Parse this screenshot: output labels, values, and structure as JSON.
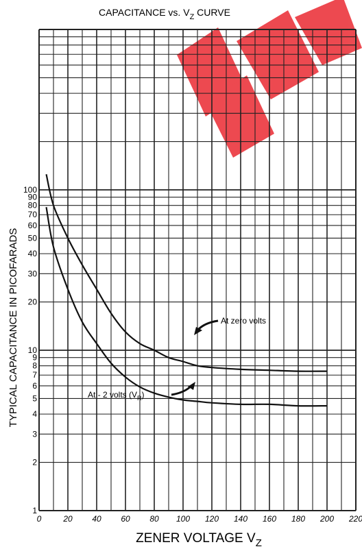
{
  "chart_data": {
    "type": "line",
    "title": "CAPACITANCE vs. V",
    "title_sub": "Z",
    "title_tail": " CURVE",
    "xlabel": "ZENER VOLTAGE V",
    "xlabel_sub": "Z",
    "ylabel": "TYPICAL CAPACITANCE IN PICOFARADS",
    "xlim": [
      0,
      220
    ],
    "ylim": [
      1,
      1000
    ],
    "y_scale": "log",
    "grid": true,
    "x_ticks": [
      "0",
      "20",
      "40",
      "60",
      "80",
      "100",
      "120",
      "140",
      "160",
      "180",
      "200",
      "220"
    ],
    "y_tick_values": [
      1,
      2,
      3,
      4,
      5,
      6,
      7,
      8,
      9,
      10,
      20,
      30,
      40,
      50,
      60,
      70,
      80,
      90,
      100
    ],
    "y_tick_labels": [
      "1",
      "2",
      "3",
      "4",
      "5",
      "6",
      "7",
      "8",
      "9",
      "10",
      "20",
      "30",
      "40",
      "50",
      "60",
      "70",
      "80",
      "90",
      "100"
    ],
    "series": [
      {
        "name": "At zero volts",
        "x": [
          5,
          10,
          20,
          30,
          40,
          50,
          60,
          70,
          80,
          90,
          100,
          110,
          120,
          140,
          160,
          180,
          200
        ],
        "y": [
          125,
          80,
          50,
          34,
          24,
          17,
          13,
          11,
          10,
          9,
          8.5,
          8,
          7.8,
          7.6,
          7.5,
          7.4,
          7.4
        ]
      },
      {
        "name": "At - 2 volts (V",
        "name_sub": "R",
        "name_tail": ")",
        "x": [
          5,
          10,
          20,
          30,
          40,
          50,
          60,
          70,
          80,
          90,
          100,
          110,
          120,
          140,
          160,
          180,
          200
        ],
        "y": [
          78,
          44,
          24,
          15,
          11,
          8.3,
          6.8,
          5.9,
          5.4,
          5.1,
          4.9,
          4.8,
          4.7,
          4.6,
          4.6,
          4.5,
          4.5
        ]
      }
    ]
  },
  "watermark_color": "#ea2a32"
}
